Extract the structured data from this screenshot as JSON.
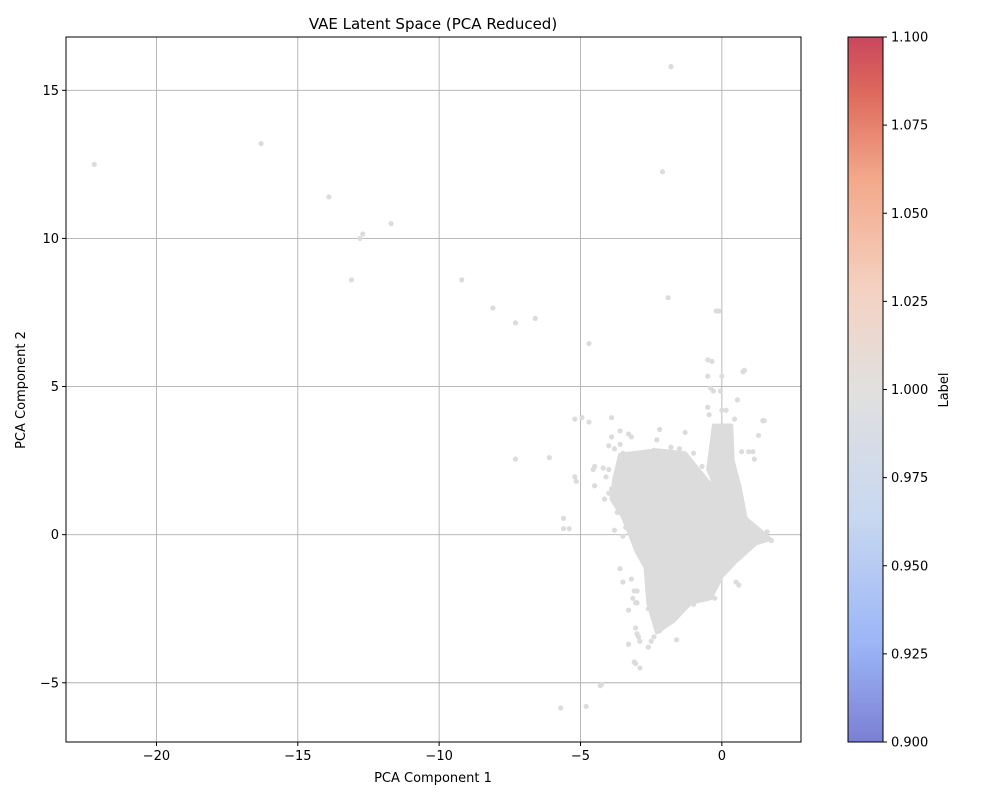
{
  "chart_data": {
    "type": "scatter",
    "title": "VAE Latent Space (PCA Reduced)",
    "xlabel": "PCA Component 1",
    "ylabel": "PCA Component 2",
    "xlim": [
      -23.2,
      2.8
    ],
    "ylim": [
      -7.0,
      16.8
    ],
    "xticks": [
      -20,
      -15,
      -10,
      -5,
      0
    ],
    "yticks": [
      -5,
      0,
      5,
      10,
      15
    ],
    "grid": true,
    "point_color": "#dddcdc",
    "colorbar": {
      "label": "Label",
      "range": [
        0.9,
        1.1
      ],
      "ticks": [
        "0.900",
        "0.925",
        "0.950",
        "0.975",
        "1.000",
        "1.025",
        "1.050",
        "1.075",
        "1.100"
      ],
      "colormap": "coolwarm",
      "colors": [
        "#7b7fd4",
        "#9cb6f7",
        "#c8d8f0",
        "#e1e0df",
        "#f4d2c2",
        "#f3a88a",
        "#dd6a5c",
        "#c9475d"
      ]
    },
    "outliers": [
      [
        -22.2,
        12.5
      ],
      [
        -16.3,
        13.2
      ],
      [
        -13.9,
        11.4
      ],
      [
        -12.8,
        10.0
      ],
      [
        -12.7,
        10.15
      ],
      [
        -11.7,
        10.5
      ],
      [
        -13.1,
        8.6
      ],
      [
        -9.2,
        8.6
      ],
      [
        -8.1,
        7.65
      ],
      [
        -7.3,
        7.15
      ],
      [
        -6.6,
        7.3
      ],
      [
        -4.7,
        6.45
      ],
      [
        -1.8,
        15.8
      ],
      [
        -2.1,
        12.25
      ],
      [
        -1.9,
        8.0
      ],
      [
        -0.2,
        7.55
      ],
      [
        -0.1,
        7.55
      ],
      [
        -0.5,
        5.9
      ],
      [
        -0.35,
        5.85
      ],
      [
        0.75,
        5.5
      ],
      [
        0.8,
        5.55
      ],
      [
        -5.2,
        3.9
      ],
      [
        -4.95,
        3.95
      ],
      [
        -4.7,
        3.8
      ],
      [
        -3.9,
        3.95
      ],
      [
        -7.3,
        2.55
      ],
      [
        -6.1,
        2.6
      ],
      [
        -5.2,
        1.95
      ],
      [
        -5.15,
        1.8
      ],
      [
        -5.6,
        0.55
      ],
      [
        -5.6,
        0.2
      ],
      [
        -5.4,
        0.2
      ],
      [
        -4.3,
        -5.1
      ],
      [
        -4.25,
        -5.05
      ],
      [
        -5.7,
        -5.85
      ],
      [
        -4.8,
        -5.8
      ],
      [
        -3.1,
        -4.3
      ],
      [
        -3.05,
        -4.35
      ],
      [
        -2.9,
        -4.5
      ],
      [
        1.45,
        3.85
      ],
      [
        1.5,
        3.85
      ],
      [
        1.3,
        3.35
      ],
      [
        0.55,
        4.55
      ],
      [
        1.1,
        2.8
      ]
    ],
    "cluster": {
      "polygon": [
        [
          -3.6,
          2.7
        ],
        [
          -2.3,
          2.85
        ],
        [
          -1.3,
          2.75
        ],
        [
          -0.5,
          1.8
        ],
        [
          0.2,
          1.2
        ],
        [
          0.9,
          0.5
        ],
        [
          1.4,
          0.1
        ],
        [
          1.7,
          -0.15
        ],
        [
          1.2,
          -0.3
        ],
        [
          0.5,
          -0.9
        ],
        [
          0.0,
          -1.4
        ],
        [
          -0.4,
          -2.15
        ],
        [
          -1.1,
          -2.3
        ],
        [
          -1.7,
          -2.9
        ],
        [
          -2.3,
          -3.3
        ],
        [
          -2.6,
          -2.3
        ],
        [
          -2.7,
          -1.1
        ],
        [
          -3.0,
          -0.6
        ],
        [
          -3.5,
          0.6
        ],
        [
          -3.9,
          1.2
        ],
        [
          -3.8,
          1.9
        ]
      ],
      "spur": [
        [
          -0.3,
          3.7
        ],
        [
          0.35,
          3.7
        ],
        [
          0.4,
          2.5
        ],
        [
          0.65,
          1.6
        ],
        [
          0.85,
          0.6
        ],
        [
          0.5,
          0.8
        ],
        [
          -0.1,
          1.3
        ],
        [
          -0.5,
          2.2
        ]
      ],
      "fringe": [
        [
          -0.4,
          4.95
        ],
        [
          -0.3,
          4.85
        ],
        [
          -0.05,
          4.85
        ],
        [
          0.0,
          4.2
        ],
        [
          0.15,
          4.2
        ],
        [
          -0.5,
          4.3
        ],
        [
          -0.45,
          4.05
        ],
        [
          -0.15,
          3.35
        ],
        [
          -0.3,
          3.3
        ],
        [
          0.3,
          3.3
        ],
        [
          -0.5,
          5.35
        ],
        [
          0.0,
          5.35
        ],
        [
          -3.9,
          3.3
        ],
        [
          -3.2,
          3.3
        ],
        [
          -3.3,
          3.4
        ],
        [
          -2.2,
          3.55
        ],
        [
          -2.3,
          3.2
        ],
        [
          -1.3,
          3.45
        ],
        [
          -3.6,
          3.05
        ],
        [
          -3.6,
          3.5
        ],
        [
          -4.0,
          3.0
        ],
        [
          -3.8,
          2.9
        ],
        [
          -4.5,
          2.3
        ],
        [
          -4.55,
          2.2
        ],
        [
          -4.2,
          2.25
        ],
        [
          -4.0,
          2.2
        ],
        [
          -4.1,
          1.95
        ],
        [
          -3.9,
          1.55
        ],
        [
          -4.0,
          1.4
        ],
        [
          -4.5,
          1.65
        ],
        [
          -4.15,
          1.2
        ],
        [
          -3.7,
          0.75
        ],
        [
          -3.8,
          0.15
        ],
        [
          -3.4,
          0.25
        ],
        [
          -3.5,
          -0.05
        ],
        [
          -3.6,
          -1.15
        ],
        [
          -3.5,
          -1.6
        ],
        [
          -3.2,
          -1.5
        ],
        [
          -3.3,
          -2.55
        ],
        [
          -3.15,
          -2.15
        ],
        [
          -3.05,
          -3.15
        ],
        [
          -3.0,
          -3.35
        ],
        [
          -2.95,
          -3.45
        ],
        [
          -2.9,
          -3.6
        ],
        [
          -2.4,
          -3.45
        ],
        [
          -2.2,
          -3.25
        ],
        [
          -3.3,
          -3.7
        ],
        [
          -2.6,
          -3.8
        ],
        [
          -2.5,
          -3.6
        ],
        [
          -1.6,
          -3.55
        ],
        [
          -3.05,
          -2.3
        ],
        [
          -3.0,
          -2.3
        ],
        [
          -3.1,
          -1.9
        ],
        [
          -3.0,
          -1.9
        ],
        [
          -2.6,
          -2.5
        ],
        [
          0.95,
          2.8
        ],
        [
          1.15,
          2.55
        ],
        [
          0.7,
          2.8
        ],
        [
          0.3,
          3.15
        ],
        [
          0.45,
          3.9
        ],
        [
          1.6,
          0.1
        ],
        [
          1.75,
          -0.2
        ],
        [
          0.5,
          -1.6
        ],
        [
          0.6,
          -1.7
        ],
        [
          -0.25,
          -2.15
        ],
        [
          -0.5,
          -2.1
        ],
        [
          -1.0,
          -2.35
        ],
        [
          -2.4,
          2.85
        ],
        [
          -1.8,
          2.95
        ],
        [
          -1.5,
          2.9
        ],
        [
          -1.0,
          2.75
        ],
        [
          -0.7,
          2.3
        ],
        [
          -3.5,
          2.75
        ],
        [
          -3.6,
          2.6
        ]
      ]
    }
  }
}
